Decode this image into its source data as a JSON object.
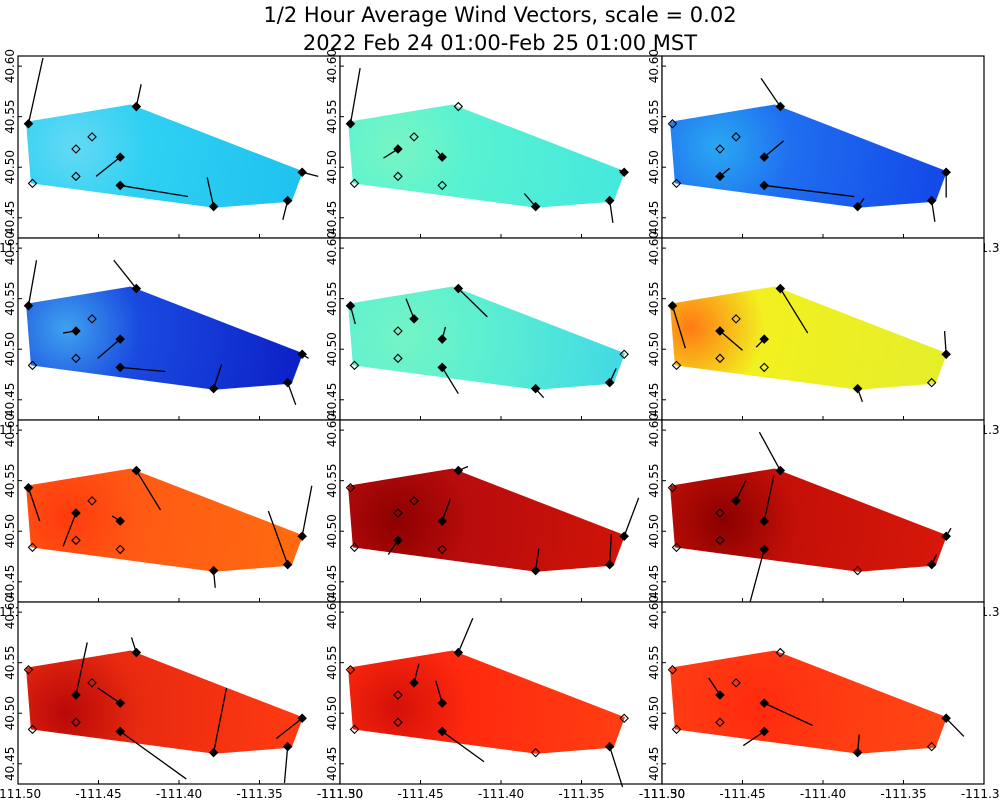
{
  "title_line1": "1/2 Hour Average Wind Vectors, scale =  0.02",
  "title_line2": "2022 Feb 24 01:00-Feb 25 01:00 MST",
  "chart_data": {
    "type": "vector-field-map",
    "grid": {
      "rows": 4,
      "cols": 3
    },
    "x_range": [
      -111.5,
      -111.3
    ],
    "y_range": [
      40.43,
      40.61
    ],
    "x_ticks": [
      "-111.50",
      "-111.45",
      "-111.40",
      "-111.35",
      "-111.30"
    ],
    "x_tick_values": [
      -111.5,
      -111.45,
      -111.4,
      -111.35,
      -111.3
    ],
    "y_ticks": [
      "40.45",
      "40.50",
      "40.55",
      "40.60"
    ],
    "y_tick_values": [
      40.45,
      40.5,
      40.55,
      40.6
    ],
    "stations": [
      {
        "id": "S1",
        "lon": -111.4935,
        "lat": 40.543
      },
      {
        "id": "S2",
        "lon": -111.491,
        "lat": 40.484
      },
      {
        "id": "S3",
        "lon": -111.464,
        "lat": 40.491
      },
      {
        "id": "S4",
        "lon": -111.464,
        "lat": 40.518
      },
      {
        "id": "S5",
        "lon": -111.454,
        "lat": 40.53
      },
      {
        "id": "S6",
        "lon": -111.4365,
        "lat": 40.51
      },
      {
        "id": "S7",
        "lon": -111.4365,
        "lat": 40.482
      },
      {
        "id": "S8",
        "lon": -111.4265,
        "lat": 40.56
      },
      {
        "id": "S9",
        "lon": -111.3785,
        "lat": 40.461
      },
      {
        "id": "S10",
        "lon": -111.3325,
        "lat": 40.467
      },
      {
        "id": "S11",
        "lon": -111.3235,
        "lat": 40.495
      }
    ],
    "domain_outline": [
      [
        -111.495,
        40.545
      ],
      [
        -111.43,
        40.562
      ],
      [
        -111.323,
        40.496
      ],
      [
        -111.33,
        40.466
      ],
      [
        -111.378,
        40.46
      ],
      [
        -111.492,
        40.484
      ]
    ],
    "panels": [
      {
        "fill": [
          "#2fd0f2",
          "#63d9f5",
          "#1fc2f0"
        ],
        "hot": [
          -111.465,
          40.52
        ],
        "vectors": [
          [
            0.009,
            0.065
          ],
          [
            0,
            0
          ],
          [
            0,
            0
          ],
          [
            0,
            0
          ],
          [
            0,
            0
          ],
          [
            -0.015,
            -0.019
          ],
          [
            0.042,
            -0.011
          ],
          [
            0.003,
            0.022
          ],
          [
            -0.004,
            0.029
          ],
          [
            -0.003,
            -0.019
          ],
          [
            0.01,
            -0.004
          ]
        ],
        "visible": [
          0,
          1,
          1,
          1,
          1,
          1,
          1,
          1,
          1,
          1,
          1,
          1
        ]
      },
      {
        "fill": [
          "#58f2d2",
          "#78f5c4",
          "#45e8de"
        ],
        "hot": [
          -111.465,
          40.52
        ],
        "vectors": [
          [
            0.006,
            0.055
          ],
          [
            0,
            0
          ],
          [
            0,
            0
          ],
          [
            -0.009,
            -0.009
          ],
          [
            0,
            0
          ],
          [
            -0.004,
            0.007
          ],
          [
            0,
            0
          ],
          [
            0,
            0
          ],
          [
            -0.007,
            0.013
          ],
          [
            0.002,
            -0.022
          ],
          [
            -0.003,
            0.002
          ]
        ],
        "visible": [
          1,
          1,
          1,
          1,
          1,
          1,
          1,
          1,
          1,
          1,
          1,
          1
        ]
      },
      {
        "fill": [
          "#1f6ef0",
          "#2aa8f2",
          "#1348e8"
        ],
        "hot": [
          -111.465,
          40.52
        ],
        "vectors": [
          [
            0,
            0
          ],
          [
            0,
            0
          ],
          [
            0.006,
            0.008
          ],
          [
            0,
            0
          ],
          [
            0,
            0
          ],
          [
            0.012,
            0.016
          ],
          [
            0.056,
            -0.011
          ],
          [
            -0.012,
            0.028
          ],
          [
            0.004,
            0.008
          ],
          [
            0.002,
            -0.021
          ],
          [
            0,
            -0.025
          ]
        ],
        "visible": [
          1,
          1,
          1,
          1,
          1,
          1,
          1,
          1,
          1,
          1,
          1,
          1
        ]
      },
      {
        "fill": [
          "#1a4ae0",
          "#3fa2ee",
          "#0c22c8"
        ],
        "hot": [
          -111.47,
          40.52
        ],
        "vectors": [
          [
            0.005,
            0.045
          ],
          [
            0,
            0
          ],
          [
            0,
            0
          ],
          [
            -0.008,
            -0.002
          ],
          [
            0,
            0
          ],
          [
            -0.014,
            -0.019
          ],
          [
            0.028,
            -0.004
          ],
          [
            -0.014,
            0.028
          ],
          [
            0.005,
            0.024
          ],
          [
            0.005,
            -0.022
          ],
          [
            0.004,
            -0.004
          ]
        ],
        "visible": [
          1,
          1,
          1,
          1,
          1,
          1,
          1,
          1,
          1,
          1,
          1,
          1
        ]
      },
      {
        "fill": [
          "#5ef0d0",
          "#74f4c6",
          "#3fd8e6"
        ],
        "hot": [
          -111.46,
          40.512
        ],
        "vectors": [
          [
            0.003,
            -0.018
          ],
          [
            0,
            0
          ],
          [
            0,
            0
          ],
          [
            0,
            0
          ],
          [
            -0.005,
            0.02
          ],
          [
            0.002,
            0.012
          ],
          [
            0.01,
            -0.026
          ],
          [
            0.018,
            -0.028
          ],
          [
            0.005,
            -0.009
          ],
          [
            0.004,
            0.014
          ],
          [
            0,
            0
          ]
        ],
        "visible": [
          1,
          1,
          1,
          1,
          1,
          1,
          1,
          1,
          1,
          1,
          1,
          1
        ]
      },
      {
        "fill": [
          "#f2f020",
          "#ff7a14",
          "#e6ee28"
        ],
        "hot": [
          -111.482,
          40.522
        ],
        "vectors": [
          [
            0.008,
            -0.042
          ],
          [
            0,
            0
          ],
          [
            0,
            0
          ],
          [
            0.014,
            -0.019
          ],
          [
            0,
            0
          ],
          [
            -0.005,
            -0.008
          ],
          [
            0,
            0
          ],
          [
            0.017,
            -0.044
          ],
          [
            0.003,
            -0.013
          ],
          [
            0,
            0
          ],
          [
            -0.001,
            0.023
          ]
        ],
        "visible": [
          1,
          1,
          1,
          1,
          1,
          1,
          1,
          1,
          1,
          1,
          1,
          1
        ]
      },
      {
        "fill": [
          "#ff5a14",
          "#ff3a0e",
          "#ff6a10"
        ],
        "hot": [
          -111.47,
          40.515
        ],
        "vectors": [
          [
            0.007,
            -0.033
          ],
          [
            0,
            0
          ],
          [
            0,
            0
          ],
          [
            -0.008,
            -0.033
          ],
          [
            0,
            0
          ],
          [
            -0.005,
            0.005
          ],
          [
            0,
            0
          ],
          [
            0.015,
            -0.039
          ],
          [
            0.001,
            -0.017
          ],
          [
            -0.012,
            0.053
          ],
          [
            0.006,
            0.05
          ]
        ],
        "visible": [
          1,
          1,
          1,
          1,
          1,
          1,
          1,
          1,
          1,
          1,
          1,
          1
        ]
      },
      {
        "fill": [
          "#b80c0c",
          "#8e0000",
          "#d01408"
        ],
        "hot": [
          -111.465,
          40.51
        ],
        "vectors": [
          [
            0,
            0
          ],
          [
            0,
            0
          ],
          [
            -0.006,
            -0.014
          ],
          [
            0,
            0
          ],
          [
            0,
            0
          ],
          [
            0.005,
            0.022
          ],
          [
            0,
            0
          ],
          [
            0.006,
            0.004
          ],
          [
            0.002,
            0.022
          ],
          [
            0.001,
            0.03
          ],
          [
            0.009,
            0.038
          ]
        ],
        "visible": [
          1,
          1,
          1,
          1,
          1,
          1,
          1,
          1,
          1,
          1,
          1,
          1
        ]
      },
      {
        "fill": [
          "#c41008",
          "#8a0000",
          "#d8180a"
        ],
        "hot": [
          -111.462,
          40.51
        ],
        "vectors": [
          [
            0,
            0
          ],
          [
            0,
            0
          ],
          [
            0,
            0
          ],
          [
            0,
            0
          ],
          [
            0.006,
            0.02
          ],
          [
            0.006,
            0.045
          ],
          [
            -0.011,
            -0.065
          ],
          [
            -0.013,
            0.038
          ],
          [
            0,
            0
          ],
          [
            0.003,
            0.01
          ],
          [
            0.003,
            0.008
          ]
        ],
        "visible": [
          1,
          1,
          1,
          1,
          1,
          1,
          1,
          1,
          1,
          1,
          1,
          1
        ]
      },
      {
        "fill": [
          "#e82a10",
          "#b80808",
          "#ff3a12"
        ],
        "hot": [
          -111.47,
          40.5
        ],
        "vectors": [
          [
            0,
            0
          ],
          [
            0,
            0
          ],
          [
            0,
            0
          ],
          [
            0.007,
            0.052
          ],
          [
            0,
            0
          ],
          [
            -0.014,
            0.015
          ],
          [
            0.041,
            -0.047
          ],
          [
            -0.003,
            0.015
          ],
          [
            0.008,
            0.064
          ],
          [
            -0.002,
            -0.036
          ],
          [
            -0.016,
            -0.02
          ]
        ],
        "visible": [
          1,
          1,
          1,
          1,
          1,
          1,
          1,
          1,
          1,
          1,
          1,
          1
        ]
      },
      {
        "fill": [
          "#ff2a0e",
          "#d41008",
          "#ff3e12"
        ],
        "hot": [
          -111.465,
          40.505
        ],
        "vectors": [
          [
            0,
            0
          ],
          [
            0,
            0
          ],
          [
            0,
            0
          ],
          [
            0,
            0
          ],
          [
            0.003,
            0.019
          ],
          [
            -0.004,
            0.022
          ],
          [
            0.026,
            -0.03
          ],
          [
            0.009,
            0.034
          ],
          [
            0,
            0
          ],
          [
            0.008,
            -0.04
          ],
          [
            0,
            0
          ]
        ],
        "visible": [
          1,
          1,
          1,
          1,
          1,
          1,
          1,
          1,
          1,
          1,
          1,
          1
        ]
      },
      {
        "fill": [
          "#ff3a12",
          "#ff2a0e",
          "#ff4a14"
        ],
        "hot": [
          -111.44,
          40.505
        ],
        "vectors": [
          [
            0,
            0
          ],
          [
            0,
            0
          ],
          [
            0,
            0
          ],
          [
            -0.007,
            0.017
          ],
          [
            0,
            0
          ],
          [
            0.03,
            -0.022
          ],
          [
            -0.013,
            -0.014
          ],
          [
            0,
            0
          ],
          [
            0.001,
            0.018
          ],
          [
            0,
            0
          ],
          [
            0.011,
            -0.018
          ]
        ],
        "visible": [
          1,
          1,
          1,
          1,
          1,
          1,
          1,
          1,
          1,
          1,
          1,
          1
        ]
      }
    ]
  }
}
